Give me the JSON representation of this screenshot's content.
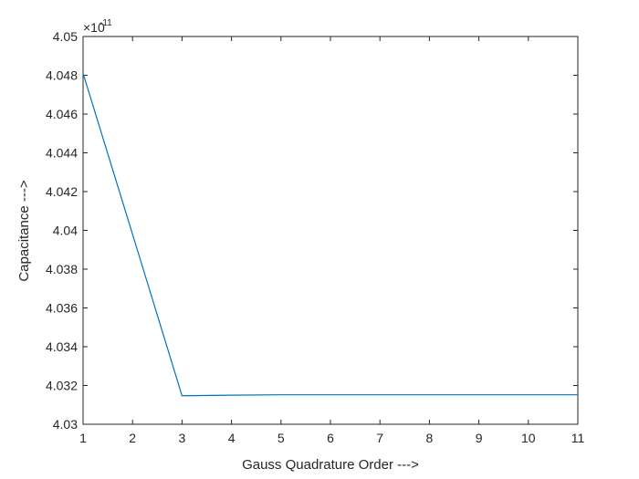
{
  "chart_data": {
    "type": "line",
    "xlabel": "Gauss Quadrature Order --->",
    "ylabel": "Capacitance --->",
    "exponent_base": "×10",
    "exponent_power": "-11",
    "xlim": [
      1,
      11
    ],
    "ylim": [
      4.03,
      4.05
    ],
    "xticks": [
      "1",
      "2",
      "3",
      "4",
      "5",
      "6",
      "7",
      "8",
      "9",
      "10",
      "11"
    ],
    "yticks": [
      "4.03",
      "4.032",
      "4.034",
      "4.036",
      "4.038",
      "4.04",
      "4.042",
      "4.044",
      "4.046",
      "4.048",
      "4.05"
    ],
    "grid": false,
    "series": [
      {
        "color": "#0072BD",
        "x": [
          1,
          2,
          3,
          4,
          5,
          6,
          7,
          8,
          9,
          10,
          11
        ],
        "y": [
          4.0481,
          4.0398,
          4.03147,
          4.0315,
          4.03152,
          4.03152,
          4.03152,
          4.03152,
          4.03152,
          4.03152,
          4.03152
        ]
      }
    ]
  }
}
